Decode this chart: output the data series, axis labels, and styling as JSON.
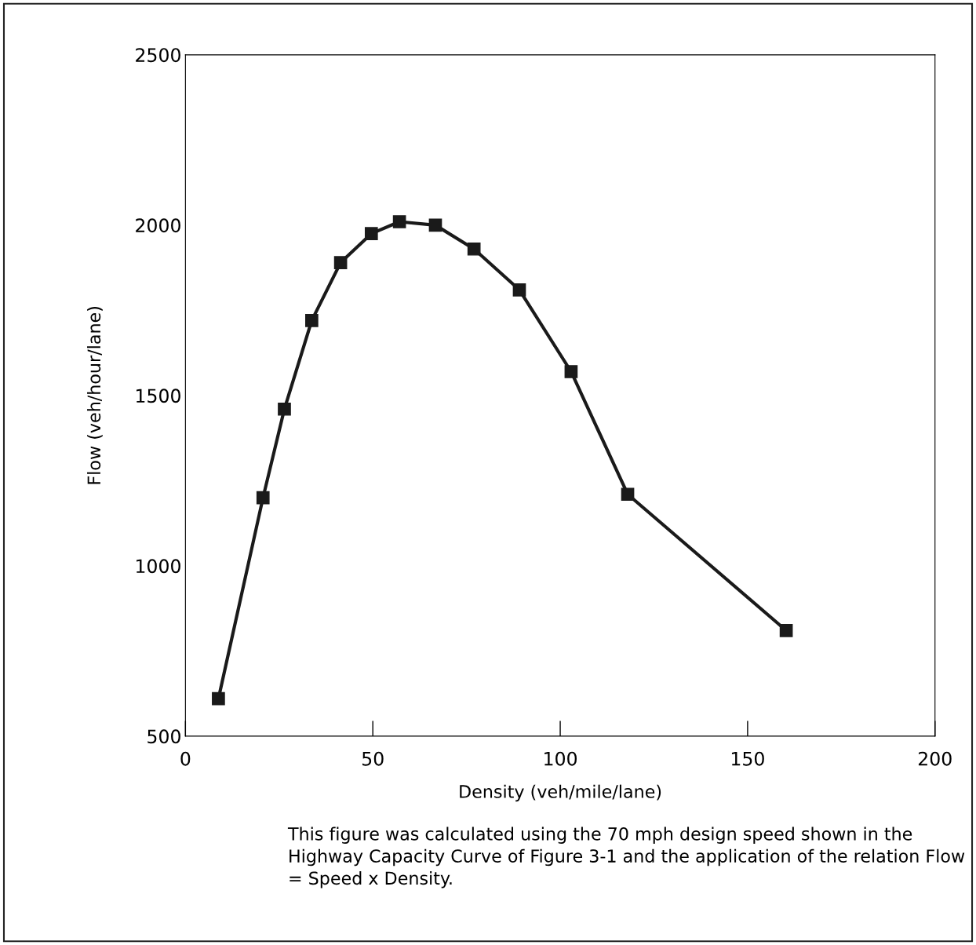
{
  "chart_data": {
    "type": "line",
    "xlabel": "Density (veh/mile/lane)",
    "ylabel": "Flow (veh/hour/lane)",
    "x": [
      8.8,
      20.7,
      26.4,
      33.7,
      41.4,
      49.6,
      57.1,
      66.7,
      77.0,
      89.1,
      102.9,
      118.0,
      160.3
    ],
    "series": [
      {
        "color": "#1a1a1a",
        "values": [
          610,
          1200,
          1460,
          1720,
          1890,
          1975,
          2010,
          2000,
          1930,
          1810,
          1570,
          1210,
          810
        ]
      }
    ],
    "xlim": [
      0,
      200
    ],
    "xticks": [
      0,
      50,
      100,
      150,
      200
    ],
    "ylim": [
      500,
      2500
    ],
    "yticks": [
      500,
      1000,
      1500,
      2000,
      2500
    ],
    "marker": "square",
    "line_style": "solid",
    "grid": false,
    "legend": false,
    "annotations": [
      "This figure was calculated using the 70 mph design speed shown in the Highway Capacity Curve of Figure 3-1 and the application of the relation Flow = Speed x Density."
    ]
  }
}
